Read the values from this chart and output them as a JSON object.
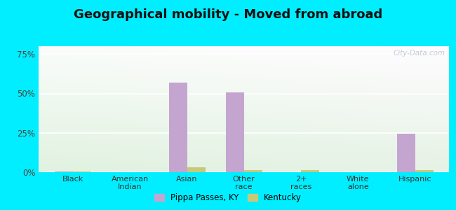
{
  "title": "Geographical mobility - Moved from abroad",
  "categories": [
    "Black",
    "American\nIndian",
    "Asian",
    "Other\nrace",
    "2+\nraces",
    "White\nalone",
    "Hispanic"
  ],
  "pippa_values": [
    0.3,
    0.0,
    57.0,
    50.5,
    0.0,
    0.0,
    24.5
  ],
  "kentucky_values": [
    0.5,
    0.0,
    3.0,
    1.5,
    1.5,
    0.0,
    1.5
  ],
  "pippa_color": "#c4a5d0",
  "kentucky_color": "#c8c87a",
  "ylim": [
    0,
    80
  ],
  "yticks": [
    0,
    25,
    50,
    75
  ],
  "ytick_labels": [
    "0%",
    "25%",
    "50%",
    "75%"
  ],
  "bar_width": 0.32,
  "outer_background": "#00eeff",
  "title_fontsize": 13,
  "watermark": "City-Data.com",
  "legend_labels": [
    "Pippa Passes, KY",
    "Kentucky"
  ]
}
